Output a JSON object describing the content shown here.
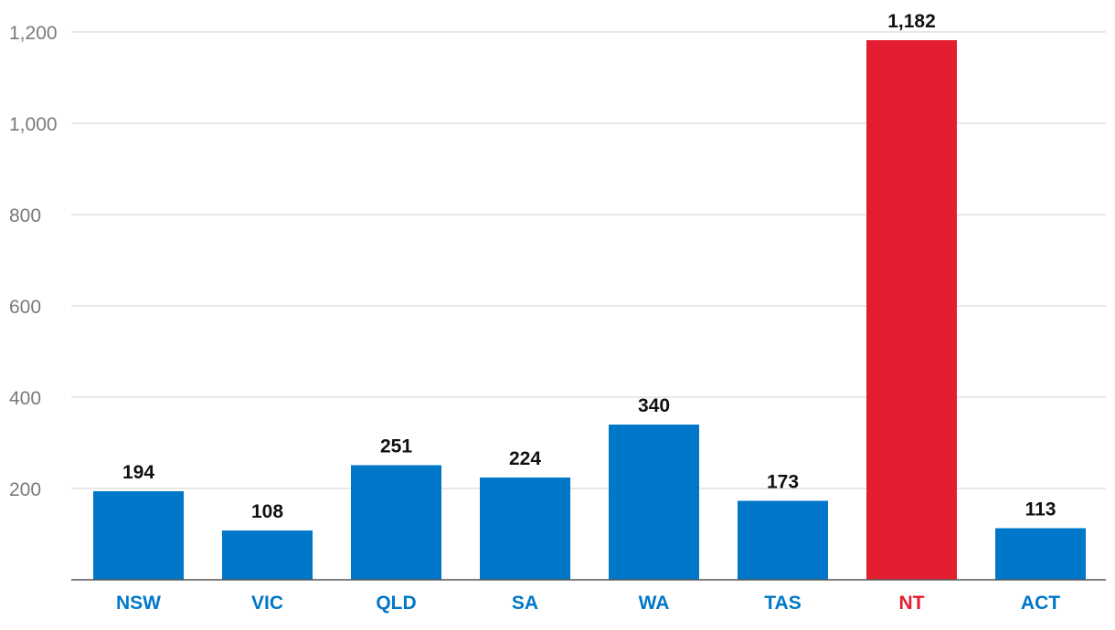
{
  "chart_data": {
    "type": "bar",
    "categories": [
      "NSW",
      "VIC",
      "QLD",
      "SA",
      "WA",
      "TAS",
      "NT",
      "ACT"
    ],
    "values": [
      194,
      108,
      251,
      224,
      340,
      173,
      1182,
      113
    ],
    "value_labels": [
      "194",
      "108",
      "251",
      "224",
      "340",
      "173",
      "1,182",
      "113"
    ],
    "y_ticks": [
      200,
      400,
      600,
      800,
      1000,
      1200
    ],
    "y_tick_labels": [
      "200",
      "400",
      "600",
      "800",
      "1,000",
      "1,200"
    ],
    "ylim": [
      0,
      1200
    ],
    "grid": true,
    "legend": "none",
    "title": "",
    "xlabel": "",
    "ylabel": "",
    "colors": {
      "default_bar": "#0077c8",
      "highlight_bar": "#e31e30",
      "highlight_category": "NT"
    }
  }
}
